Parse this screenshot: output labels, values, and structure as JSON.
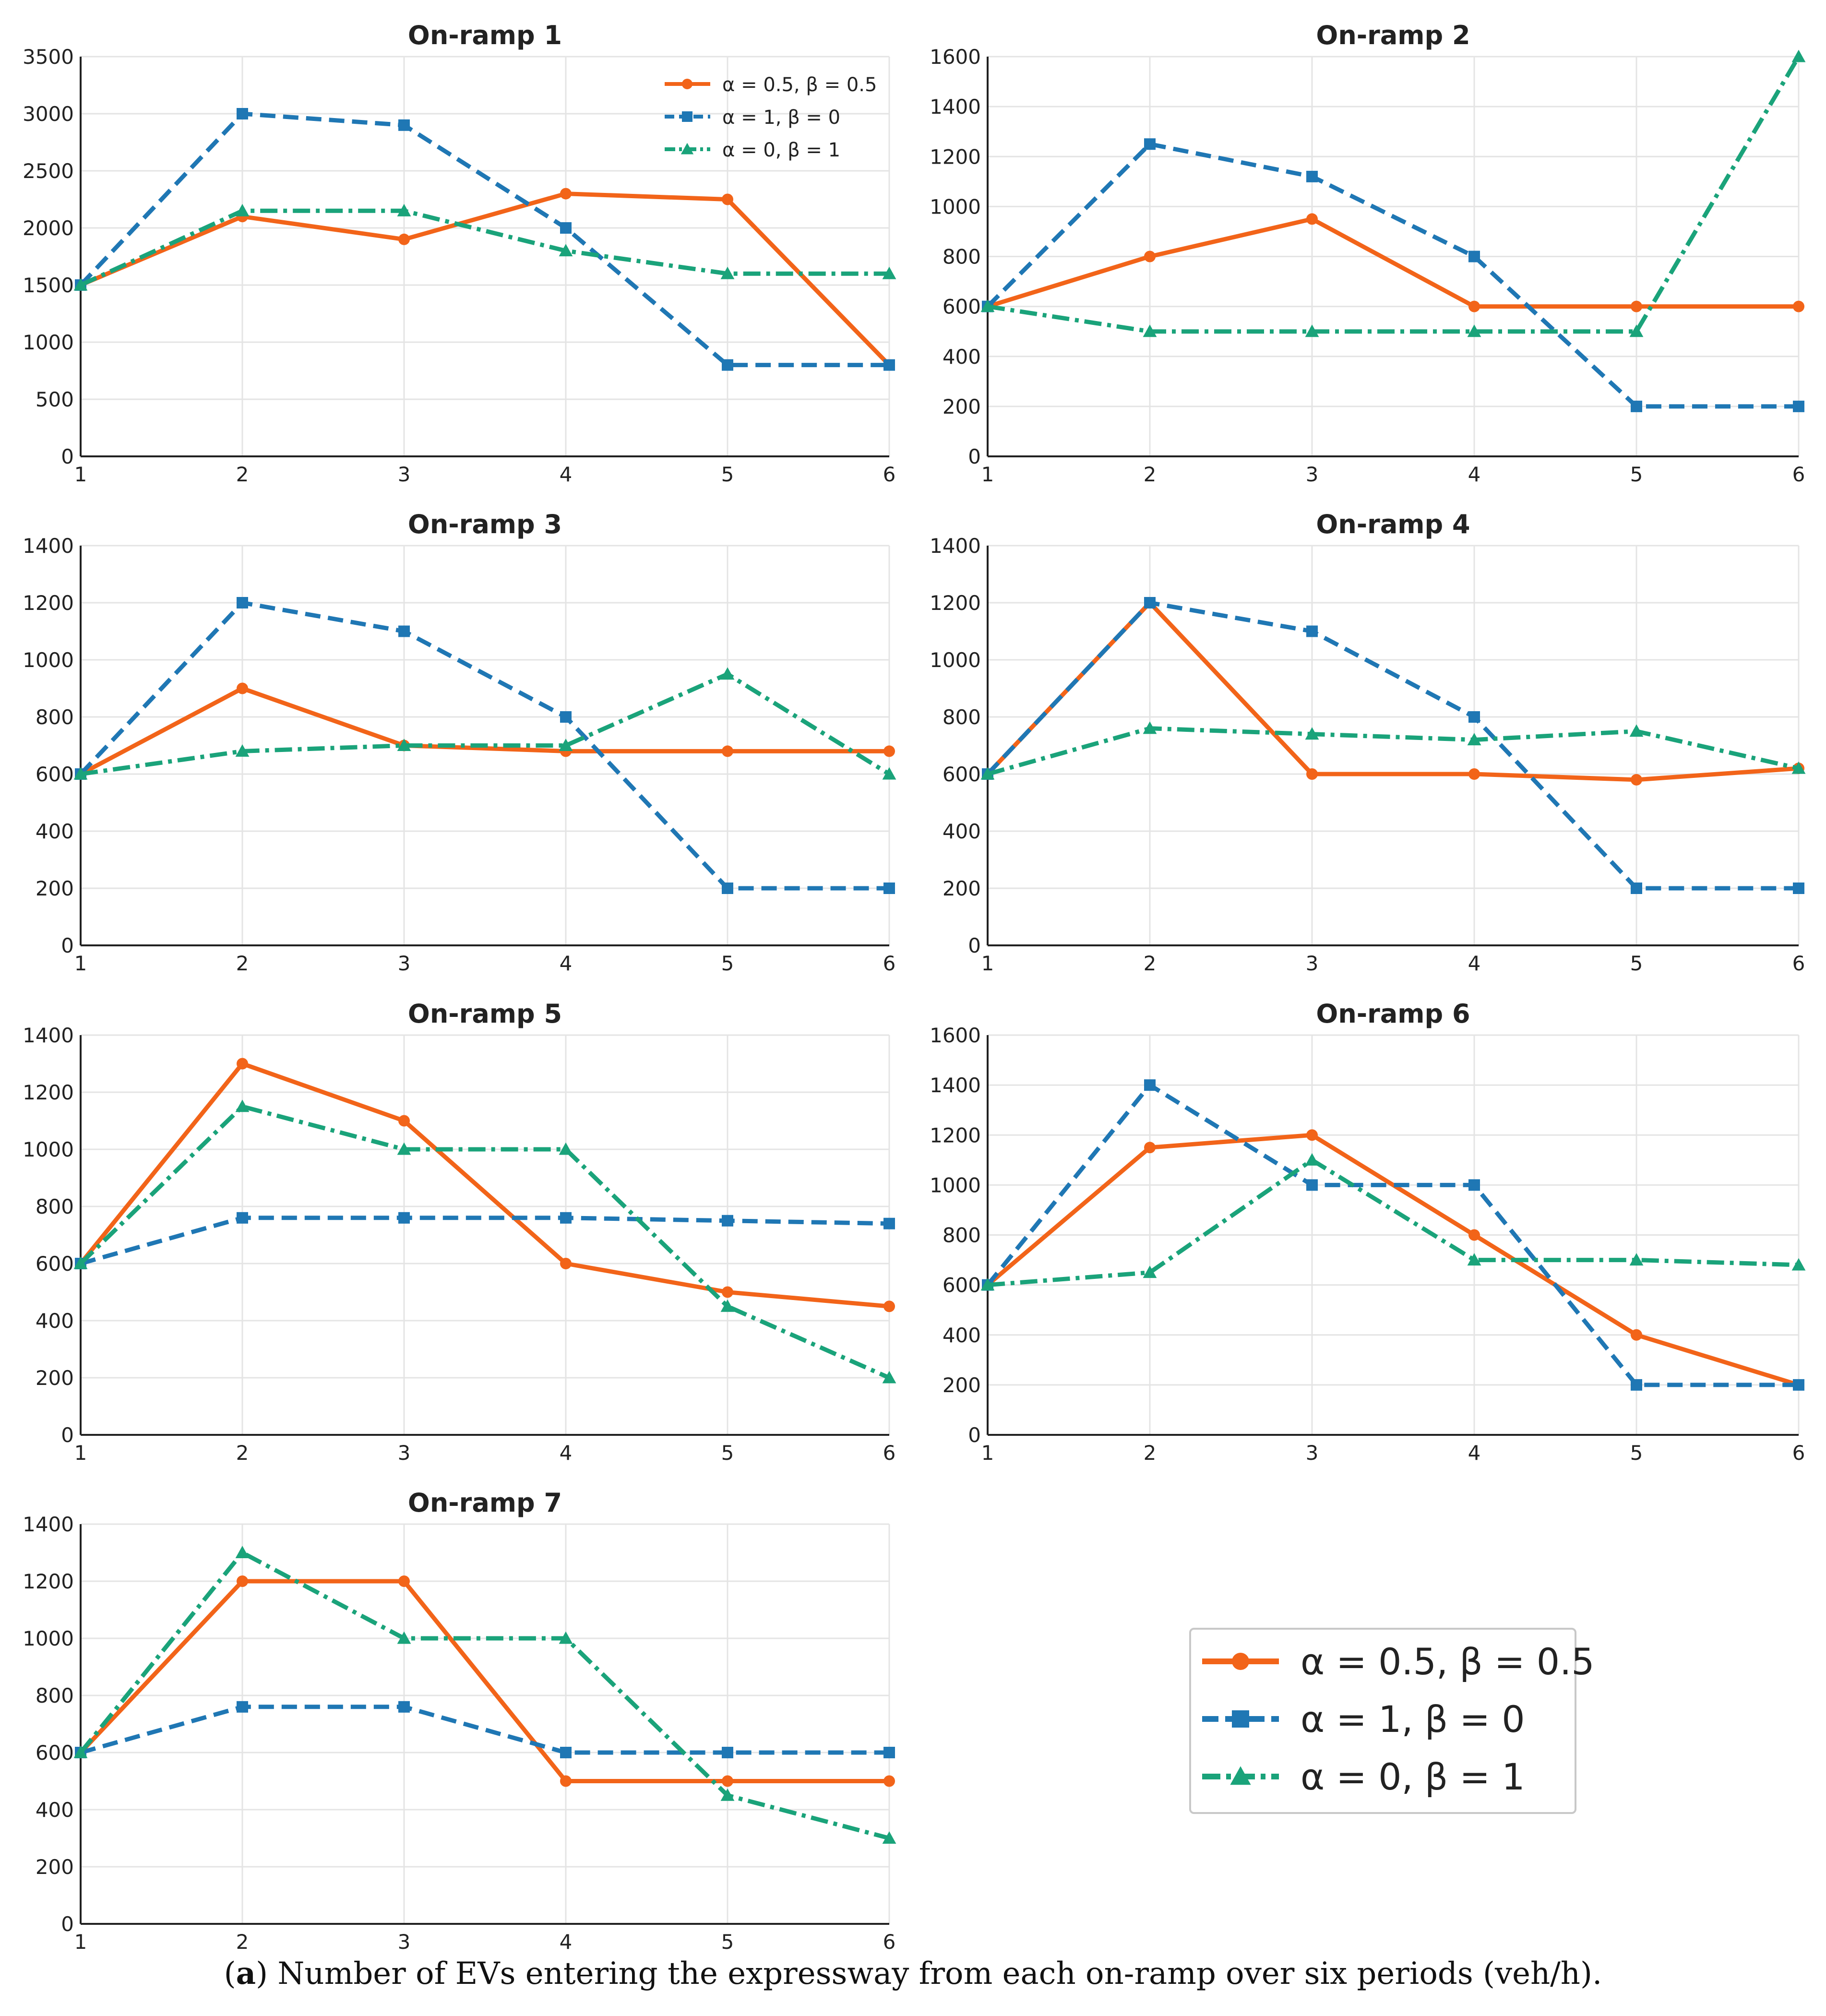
{
  "figure": {
    "caption_label": "a",
    "caption_text": "Number of EVs entering the expressway from each on-ramp over six periods (veh/h)."
  },
  "legend": [
    {
      "label": "α = 0.5,  β = 0.5",
      "color": "#f26419",
      "marker": "circle",
      "dash": "solid"
    },
    {
      "label": "α = 1,  β = 0",
      "color": "#1f77b4",
      "marker": "square",
      "dash": "dashed"
    },
    {
      "label": "α = 0,  β = 1",
      "color": "#1aa37a",
      "marker": "triangle",
      "dash": "dashdot"
    }
  ],
  "colors": {
    "orange": "#f26419",
    "blue": "#1f77b4",
    "green": "#1aa37a",
    "grid": "#e4e4e4"
  },
  "chart_data": [
    {
      "type": "line",
      "title": "On-ramp 1",
      "x": [
        1,
        2,
        3,
        4,
        5,
        6
      ],
      "xlim": [
        1,
        6
      ],
      "ylim": [
        0,
        3500
      ],
      "yticks": [
        0,
        500,
        1000,
        1500,
        2000,
        2500,
        3000,
        3500
      ],
      "series": [
        {
          "name": "α = 0.5, β = 0.5",
          "values": [
            1500,
            2100,
            1900,
            2300,
            2250,
            800
          ]
        },
        {
          "name": "α = 1, β = 0",
          "values": [
            1500,
            3000,
            2900,
            2000,
            800,
            800
          ]
        },
        {
          "name": "α = 0, β = 1",
          "values": [
            1500,
            2150,
            2150,
            1800,
            1600,
            1600
          ]
        }
      ]
    },
    {
      "type": "line",
      "title": "On-ramp 2",
      "x": [
        1,
        2,
        3,
        4,
        5,
        6
      ],
      "xlim": [
        1,
        6
      ],
      "ylim": [
        0,
        1600
      ],
      "yticks": [
        0,
        200,
        400,
        600,
        800,
        1000,
        1200,
        1400,
        1600
      ],
      "series": [
        {
          "name": "α = 0.5, β = 0.5",
          "values": [
            600,
            800,
            950,
            600,
            600,
            600
          ]
        },
        {
          "name": "α = 1, β = 0",
          "values": [
            600,
            1250,
            1120,
            800,
            200,
            200
          ]
        },
        {
          "name": "α = 0, β = 1",
          "values": [
            600,
            500,
            500,
            500,
            500,
            1600
          ]
        }
      ]
    },
    {
      "type": "line",
      "title": "On-ramp 3",
      "x": [
        1,
        2,
        3,
        4,
        5,
        6
      ],
      "xlim": [
        1,
        6
      ],
      "ylim": [
        0,
        1400
      ],
      "yticks": [
        0,
        200,
        400,
        600,
        800,
        1000,
        1200,
        1400
      ],
      "series": [
        {
          "name": "α = 0.5, β = 0.5",
          "values": [
            600,
            900,
            700,
            680,
            680,
            680
          ]
        },
        {
          "name": "α = 1, β = 0",
          "values": [
            600,
            1200,
            1100,
            800,
            200,
            200
          ]
        },
        {
          "name": "α = 0, β = 1",
          "values": [
            600,
            680,
            700,
            700,
            950,
            600
          ]
        }
      ]
    },
    {
      "type": "line",
      "title": "On-ramp 4",
      "x": [
        1,
        2,
        3,
        4,
        5,
        6
      ],
      "xlim": [
        1,
        6
      ],
      "ylim": [
        0,
        1400
      ],
      "yticks": [
        0,
        200,
        400,
        600,
        800,
        1000,
        1200,
        1400
      ],
      "series": [
        {
          "name": "α = 0.5, β = 0.5",
          "values": [
            600,
            1200,
            600,
            600,
            580,
            620
          ]
        },
        {
          "name": "α = 1, β = 0",
          "values": [
            600,
            1200,
            1100,
            800,
            200,
            200
          ]
        },
        {
          "name": "α = 0, β = 1",
          "values": [
            600,
            760,
            740,
            720,
            750,
            620
          ]
        }
      ]
    },
    {
      "type": "line",
      "title": "On-ramp 5",
      "x": [
        1,
        2,
        3,
        4,
        5,
        6
      ],
      "xlim": [
        1,
        6
      ],
      "ylim": [
        0,
        1400
      ],
      "yticks": [
        0,
        200,
        400,
        600,
        800,
        1000,
        1200,
        1400
      ],
      "series": [
        {
          "name": "α = 0.5, β = 0.5",
          "values": [
            600,
            1300,
            1100,
            600,
            500,
            450
          ]
        },
        {
          "name": "α = 1, β = 0",
          "values": [
            600,
            760,
            760,
            760,
            750,
            740
          ]
        },
        {
          "name": "α = 0, β = 1",
          "values": [
            600,
            1150,
            1000,
            1000,
            450,
            200
          ]
        }
      ]
    },
    {
      "type": "line",
      "title": "On-ramp 6",
      "x": [
        1,
        2,
        3,
        4,
        5,
        6
      ],
      "xlim": [
        1,
        6
      ],
      "ylim": [
        0,
        1600
      ],
      "yticks": [
        0,
        200,
        400,
        600,
        800,
        1000,
        1200,
        1400,
        1600
      ],
      "series": [
        {
          "name": "α = 0.5, β = 0.5",
          "values": [
            600,
            1150,
            1200,
            800,
            400,
            200
          ]
        },
        {
          "name": "α = 1, β = 0",
          "values": [
            600,
            1400,
            1000,
            1000,
            200,
            200
          ]
        },
        {
          "name": "α = 0, β = 1",
          "values": [
            600,
            650,
            1100,
            700,
            700,
            680
          ]
        }
      ]
    },
    {
      "type": "line",
      "title": "On-ramp 7",
      "x": [
        1,
        2,
        3,
        4,
        5,
        6
      ],
      "xlim": [
        1,
        6
      ],
      "ylim": [
        0,
        1400
      ],
      "yticks": [
        0,
        200,
        400,
        600,
        800,
        1000,
        1200,
        1400
      ],
      "series": [
        {
          "name": "α = 0.5, β = 0.5",
          "values": [
            600,
            1200,
            1200,
            500,
            500,
            500
          ]
        },
        {
          "name": "α = 1, β = 0",
          "values": [
            600,
            760,
            760,
            600,
            600,
            600
          ]
        },
        {
          "name": "α = 0, β = 1",
          "values": [
            600,
            1300,
            1000,
            1000,
            450,
            300
          ]
        }
      ]
    }
  ]
}
